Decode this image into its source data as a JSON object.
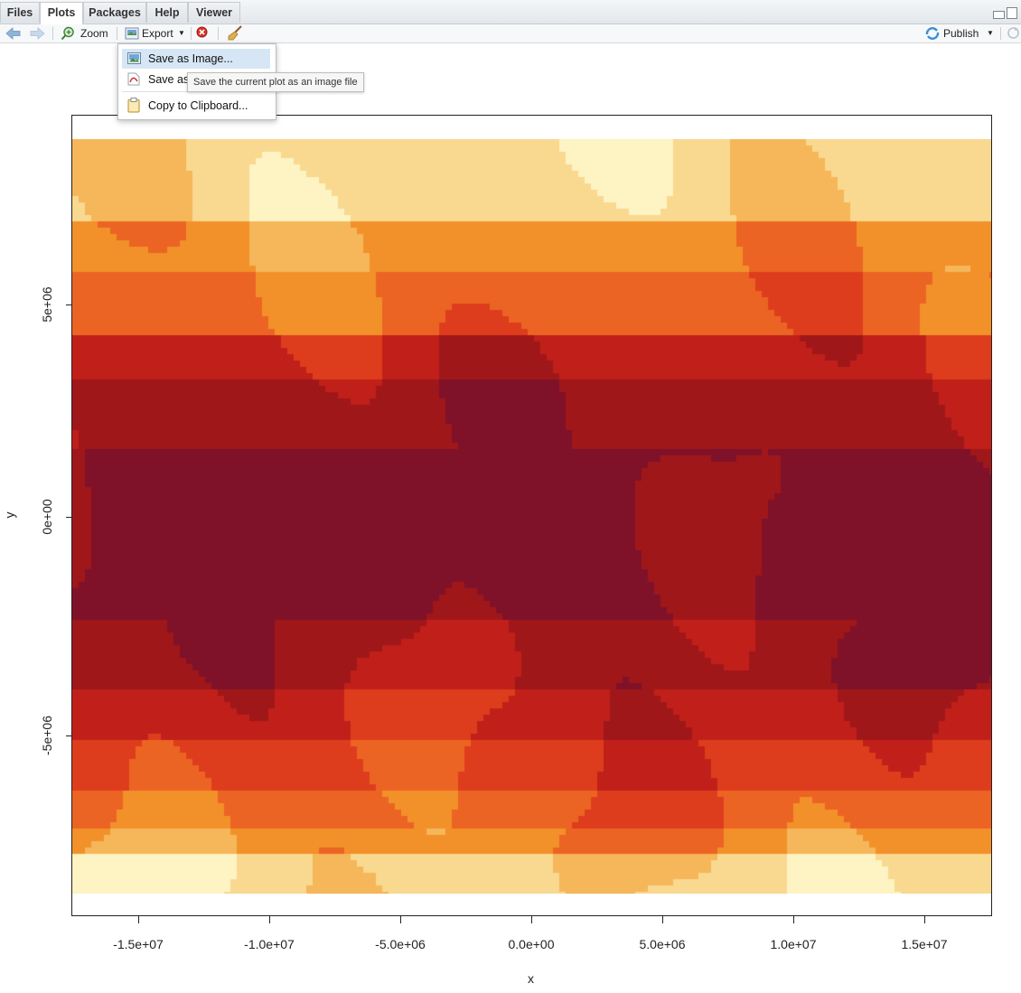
{
  "tabs": [
    {
      "label": "Files"
    },
    {
      "label": "Plots"
    },
    {
      "label": "Packages"
    },
    {
      "label": "Help"
    },
    {
      "label": "Viewer"
    }
  ],
  "active_tab": "Plots",
  "toolbar": {
    "zoom_label": "Zoom",
    "export_label": "Export",
    "publish_label": "Publish",
    "icons": [
      "back-arrow-icon",
      "forward-arrow-icon",
      "zoom-icon",
      "export-icon",
      "remove-plot-icon",
      "broom-icon",
      "publish-icon",
      "refresh-icon"
    ]
  },
  "export_menu": {
    "items": [
      {
        "label": "Save as Image...",
        "icon": "image-icon",
        "highlighted": true
      },
      {
        "label": "Save as",
        "icon": "pdf-icon",
        "highlighted": false
      },
      {
        "label": "Copy to Clipboard...",
        "icon": "clipboard-icon",
        "highlighted": false
      }
    ],
    "tooltip": "Save the current plot as an image file"
  },
  "chart_data": {
    "type": "heatmap",
    "title": "",
    "xlabel": "x",
    "ylabel": "y",
    "x_ticks": [
      -15000000,
      -10000000,
      -5000000,
      0,
      5000000,
      10000000,
      15000000
    ],
    "x_tick_labels": [
      "-1.5e+07",
      "-1.0e+07",
      "-5.0e+06",
      "0.0e+00",
      "5.0e+06",
      "1.0e+07",
      "1.5e+07"
    ],
    "y_ticks": [
      5000000,
      0,
      -5000000
    ],
    "y_tick_labels": [
      "5e+06",
      "0e+00",
      "-5e+06"
    ],
    "xlim": [
      -17550000,
      17550000
    ],
    "ylim": [
      -9200000,
      9200000
    ],
    "raster_extent": {
      "x": [
        -17550000,
        17550000
      ],
      "y": [
        -8650000,
        8650000
      ]
    },
    "legend": "none",
    "grid": false,
    "palette": [
      "#7f1129",
      "#a0171a",
      "#c1201a",
      "#de3d1d",
      "#ec6423",
      "#f2912a",
      "#f6b65a",
      "#f9d890",
      "#fef3c2"
    ],
    "approx_latitude_bands": [
      {
        "y_range": [
          6700000,
          8650000
        ],
        "class": 7
      },
      {
        "y_range": [
          5600000,
          6700000
        ],
        "class": 5
      },
      {
        "y_range": [
          4200000,
          5600000
        ],
        "class": 4
      },
      {
        "y_range": [
          3100000,
          4200000
        ],
        "class": 2
      },
      {
        "y_range": [
          1500000,
          3100000
        ],
        "class": 1
      },
      {
        "y_range": [
          -2400000,
          1500000
        ],
        "class": 0
      },
      {
        "y_range": [
          -4000000,
          -2400000
        ],
        "class": 1
      },
      {
        "y_range": [
          -5200000,
          -4000000
        ],
        "class": 2
      },
      {
        "y_range": [
          -6300000,
          -5200000
        ],
        "class": 3
      },
      {
        "y_range": [
          -7100000,
          -6300000
        ],
        "class": 4
      },
      {
        "y_range": [
          -7700000,
          -7100000
        ],
        "class": 5
      },
      {
        "y_range": [
          -8650000,
          -7700000
        ],
        "class": 7
      }
    ]
  }
}
